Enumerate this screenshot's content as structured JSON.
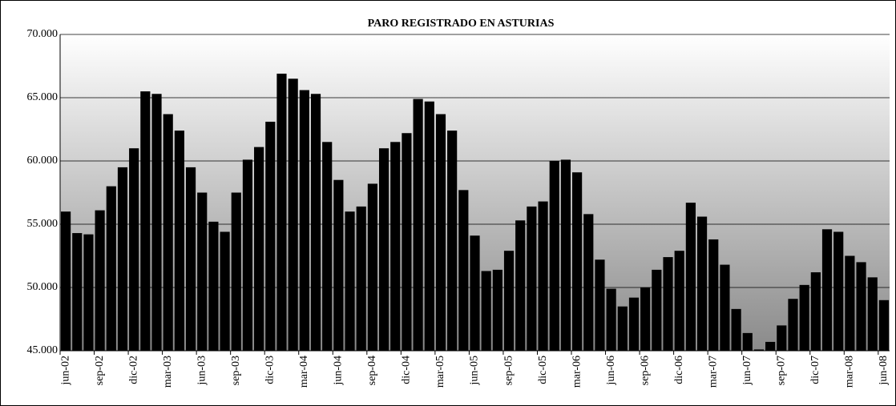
{
  "chart_data": {
    "type": "bar",
    "title": "PARO REGISTRADO EN ASTURIAS",
    "categories": [
      "jun-02",
      null,
      null,
      "sep-02",
      null,
      null,
      "dic-02",
      null,
      null,
      "mar-03",
      null,
      null,
      "jun-03",
      null,
      null,
      "sep-03",
      null,
      null,
      "dic-03",
      null,
      null,
      "mar-04",
      null,
      null,
      "jun-04",
      null,
      null,
      "sep-04",
      null,
      null,
      "dic-04",
      null,
      null,
      "mar-05",
      null,
      null,
      "jun-05",
      null,
      null,
      "sep-05",
      null,
      null,
      "dic-05",
      null,
      null,
      "mar-06",
      null,
      null,
      "jun-06",
      null,
      null,
      "sep-06",
      null,
      null,
      "dic-06",
      null,
      null,
      "mar-07",
      null,
      null,
      "jun-07",
      null,
      null,
      "sep-07",
      null,
      null,
      "dic-07",
      null,
      null,
      "mar-08",
      null,
      null,
      "jun-08"
    ],
    "values": [
      56000,
      54300,
      54200,
      56100,
      58000,
      59500,
      61000,
      65500,
      65300,
      63700,
      62400,
      59500,
      57500,
      55200,
      54400,
      57500,
      60100,
      61100,
      63100,
      66900,
      66500,
      65600,
      65300,
      61500,
      58500,
      56000,
      56400,
      58200,
      61000,
      61500,
      62200,
      64900,
      64700,
      63700,
      62400,
      57700,
      54100,
      51300,
      51400,
      52900,
      55300,
      56400,
      56800,
      60000,
      60100,
      59100,
      55800,
      52200,
      49900,
      48500,
      49200,
      50000,
      51400,
      52400,
      52900,
      56700,
      55600,
      53800,
      51800,
      48300,
      46400,
      45100,
      45700,
      47000,
      49100,
      50200,
      51200,
      54600,
      54400,
      52500,
      52000,
      50800,
      49000
    ],
    "color": "#000000",
    "ylim": [
      45000,
      70000
    ],
    "yticks": [
      {
        "value": 45000,
        "label": "45.000"
      },
      {
        "value": 50000,
        "label": "50.000"
      },
      {
        "value": 55000,
        "label": "55.000"
      },
      {
        "value": 60000,
        "label": "60.000"
      },
      {
        "value": 65000,
        "label": "65.000"
      },
      {
        "value": 70000,
        "label": "70.000"
      }
    ],
    "grid": true
  }
}
